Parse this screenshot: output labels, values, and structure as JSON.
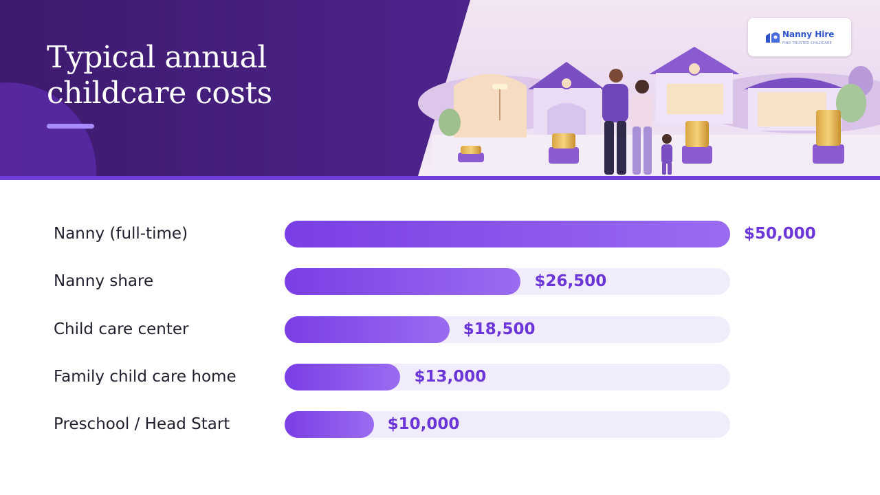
{
  "header": {
    "title_line1": "Typical annual",
    "title_line2": "childcare costs",
    "brand": {
      "name": "Nanny Hire",
      "tagline": "FIND TRUSTED CHILDCARE"
    }
  },
  "colors": {
    "header_bg": "#4b2287",
    "accent": "#7a3ee6",
    "track": "#f1ecfb",
    "value_text": "#6c35d8",
    "label_text": "#1f1f2e"
  },
  "icons": [
    "nanny-hire-logo-icon",
    "family-illustration",
    "house-icon",
    "coin-stack-icon"
  ],
  "chart_data": {
    "type": "bar",
    "orientation": "horizontal",
    "title": "Typical annual childcare costs",
    "categories": [
      "Nanny (full-time)",
      "Nanny share",
      "Child care center",
      "Family child care home",
      "Preschool / Head Start"
    ],
    "values": [
      50000,
      26500,
      18500,
      13000,
      10000
    ],
    "value_labels": [
      "$50,000",
      "$26,500",
      "$18,500",
      "$13,000",
      "$10,000"
    ],
    "xlim": [
      0,
      50000
    ],
    "grid": false,
    "legend": "none"
  }
}
